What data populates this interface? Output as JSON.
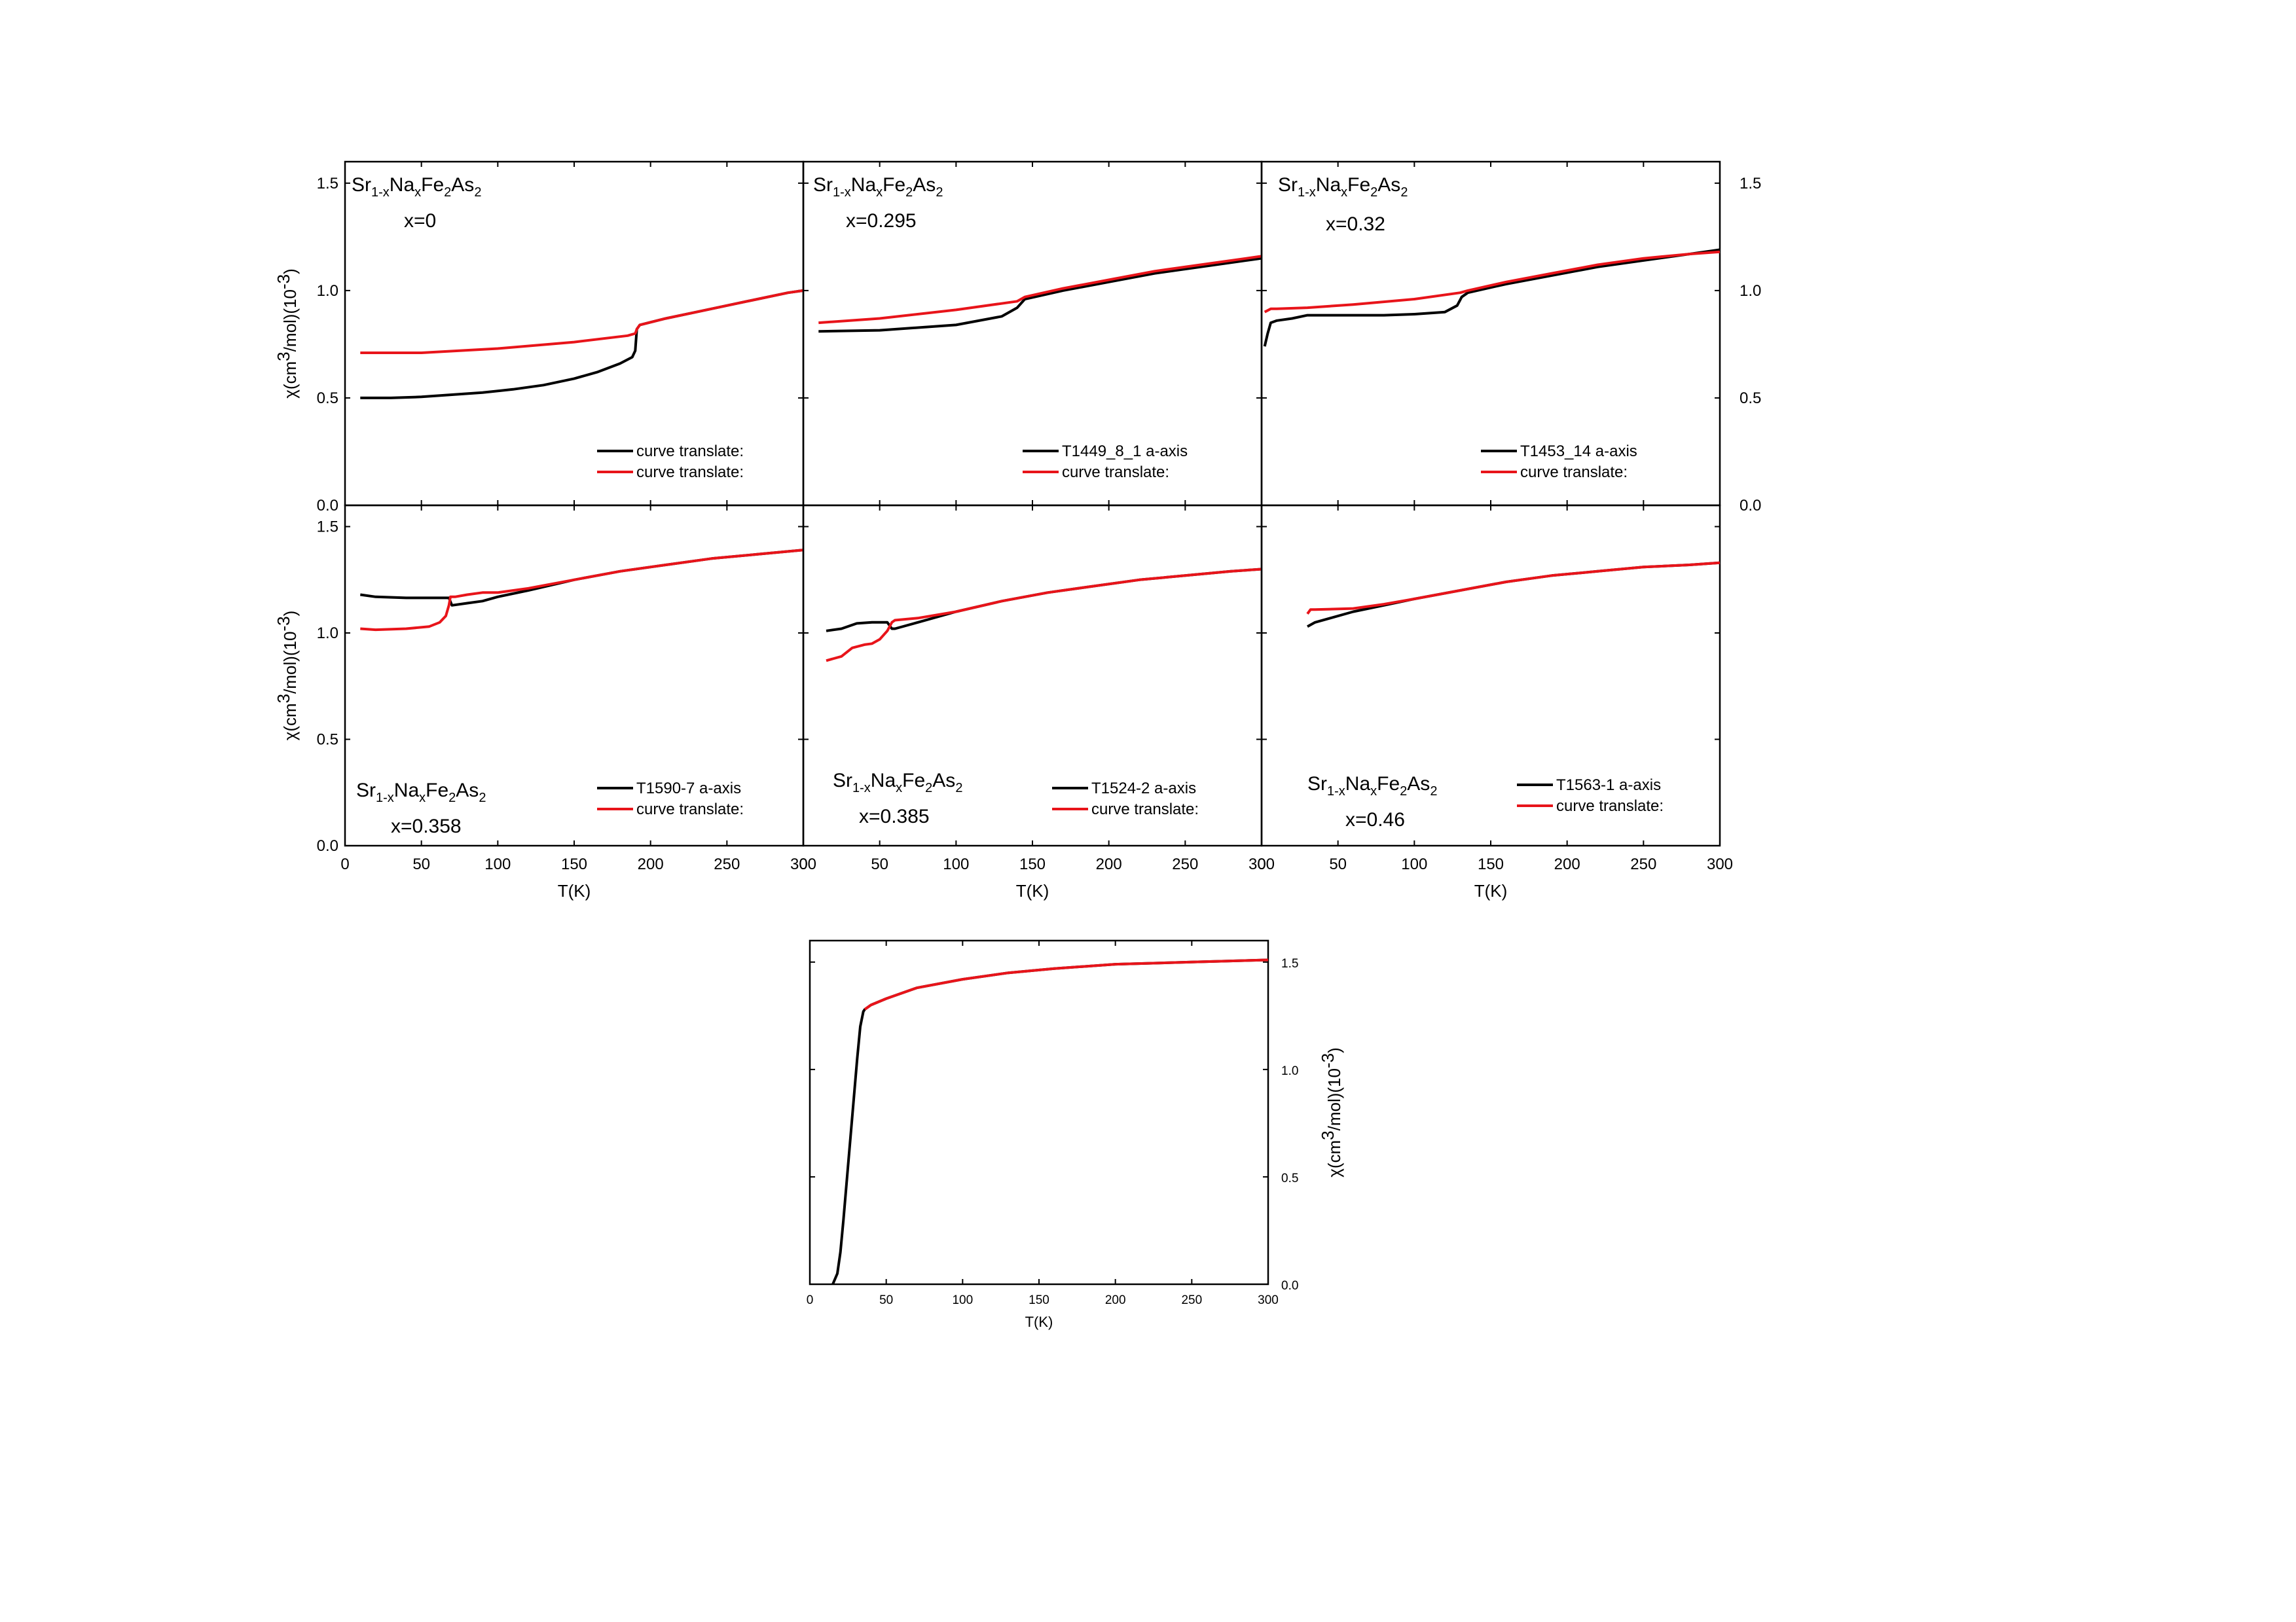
{
  "colors": {
    "black": "#000000",
    "red": "#e8141a"
  },
  "chart_data": [
    {
      "type": "line",
      "panel": "row1-col1",
      "xlim": [
        0,
        300
      ],
      "ylim": [
        0,
        1.6
      ],
      "yticks": [
        "0.0",
        "0.5",
        "1.0",
        "1.5"
      ],
      "ylabel": "χ(cm3/mol)(10-3)",
      "annotation": {
        "parts": [
          "Sr",
          "1-x",
          "Na",
          "x",
          "Fe",
          "2",
          "As",
          "2"
        ],
        "x_label": "x=0"
      },
      "legend": [
        "curve translate:",
        "curve translate:"
      ],
      "series": [
        {
          "name": "curve translate:",
          "color": "black",
          "x": [
            10,
            30,
            50,
            70,
            90,
            110,
            130,
            150,
            165,
            180,
            188,
            190,
            191,
            193,
            210,
            230,
            250,
            270,
            290,
            300
          ],
          "y": [
            0.5,
            0.5,
            0.505,
            0.515,
            0.525,
            0.54,
            0.56,
            0.59,
            0.62,
            0.66,
            0.69,
            0.72,
            0.82,
            0.84,
            0.87,
            0.9,
            0.93,
            0.96,
            0.99,
            1.0
          ]
        },
        {
          "name": "curve translate:",
          "color": "red",
          "x": [
            10,
            50,
            100,
            150,
            185,
            190,
            191,
            193,
            210,
            230,
            250,
            270,
            290,
            300
          ],
          "y": [
            0.71,
            0.71,
            0.73,
            0.76,
            0.79,
            0.8,
            0.82,
            0.84,
            0.87,
            0.9,
            0.93,
            0.96,
            0.99,
            1.0
          ]
        }
      ]
    },
    {
      "type": "line",
      "panel": "row1-col2",
      "xlim": [
        0,
        300
      ],
      "ylim": [
        0,
        1.6
      ],
      "annotation": {
        "parts": [
          "Sr",
          "1-x",
          "Na",
          "x",
          "Fe",
          "2",
          "As",
          "2"
        ],
        "x_label": "x=0.295"
      },
      "legend": [
        "T1449_8_1 a-axis",
        "curve translate:"
      ],
      "series": [
        {
          "name": "T1449_8_1 a-axis",
          "color": "black",
          "x": [
            10,
            50,
            100,
            130,
            140,
            145,
            170,
            200,
            230,
            260,
            290,
            300
          ],
          "y": [
            0.81,
            0.815,
            0.84,
            0.88,
            0.92,
            0.96,
            1.0,
            1.04,
            1.08,
            1.11,
            1.14,
            1.15
          ]
        },
        {
          "name": "curve translate:",
          "color": "red",
          "x": [
            10,
            50,
            100,
            140,
            145,
            170,
            200,
            230,
            260,
            290,
            300
          ],
          "y": [
            0.85,
            0.87,
            0.91,
            0.95,
            0.97,
            1.01,
            1.05,
            1.09,
            1.12,
            1.15,
            1.16
          ]
        }
      ]
    },
    {
      "type": "line",
      "panel": "row1-col3",
      "xlim": [
        0,
        300
      ],
      "ylim": [
        0,
        1.6
      ],
      "yticks": [
        "0.0",
        "0.5",
        "1.0",
        "1.5"
      ],
      "annotation": {
        "parts": [
          "Sr",
          "1-x",
          "Na",
          "x",
          "Fe",
          "2",
          "As",
          "2"
        ],
        "x_label": "x=0.32"
      },
      "legend": [
        "T1453_14 a-axis",
        "curve translate:"
      ],
      "series": [
        {
          "name": "T1453_14 a-axis",
          "color": "black",
          "x": [
            2,
            4,
            6,
            10,
            20,
            30,
            50,
            80,
            100,
            120,
            128,
            131,
            135,
            160,
            190,
            220,
            250,
            280,
            300
          ],
          "y": [
            0.74,
            0.8,
            0.85,
            0.86,
            0.87,
            0.885,
            0.885,
            0.885,
            0.89,
            0.9,
            0.93,
            0.97,
            0.99,
            1.03,
            1.07,
            1.11,
            1.14,
            1.17,
            1.19
          ]
        },
        {
          "name": "curve translate:",
          "color": "red",
          "x": [
            2,
            6,
            10,
            30,
            60,
            100,
            130,
            135,
            160,
            190,
            220,
            250,
            280,
            300
          ],
          "y": [
            0.9,
            0.915,
            0.915,
            0.92,
            0.935,
            0.96,
            0.99,
            1.0,
            1.04,
            1.08,
            1.12,
            1.15,
            1.17,
            1.18
          ]
        }
      ]
    },
    {
      "type": "line",
      "panel": "row2-col1",
      "xlim": [
        0,
        300
      ],
      "ylim": [
        0,
        1.6
      ],
      "xticks": [
        "0",
        "50",
        "100",
        "150",
        "200",
        "250",
        "300"
      ],
      "xlabel": "T(K)",
      "yticks": [
        "0.0",
        "0.5",
        "1.0",
        "1.5"
      ],
      "ylabel": "χ(cm3/mol)(10-3)",
      "annotation": {
        "parts": [
          "Sr",
          "1-x",
          "Na",
          "x",
          "Fe",
          "2",
          "As",
          "2"
        ],
        "x_label": "x=0.358"
      },
      "legend": [
        "T1590-7 a-axis",
        "curve translate:"
      ],
      "series": [
        {
          "name": "T1590-7 a-axis",
          "color": "black",
          "x": [
            10,
            20,
            40,
            60,
            68,
            70,
            80,
            90,
            100,
            120,
            150,
            180,
            210,
            240,
            270,
            300
          ],
          "y": [
            1.18,
            1.17,
            1.165,
            1.165,
            1.165,
            1.13,
            1.14,
            1.15,
            1.17,
            1.2,
            1.25,
            1.29,
            1.32,
            1.35,
            1.37,
            1.39
          ]
        },
        {
          "name": "curve translate:",
          "color": "red",
          "x": [
            10,
            20,
            40,
            55,
            62,
            66,
            68,
            69,
            72,
            80,
            90,
            100,
            120,
            150,
            180,
            210,
            240,
            270,
            300
          ],
          "y": [
            1.02,
            1.015,
            1.02,
            1.03,
            1.05,
            1.08,
            1.13,
            1.17,
            1.17,
            1.18,
            1.19,
            1.19,
            1.21,
            1.25,
            1.29,
            1.32,
            1.35,
            1.37,
            1.39
          ]
        }
      ]
    },
    {
      "type": "line",
      "panel": "row2-col2",
      "xlim": [
        0,
        300
      ],
      "ylim": [
        0,
        1.6
      ],
      "xticks": [
        "0",
        "50",
        "100",
        "150",
        "200",
        "250",
        "300"
      ],
      "xlabel": "T(K)",
      "annotation": {
        "parts": [
          "Sr",
          "1-x",
          "Na",
          "x",
          "Fe",
          "2",
          "As",
          "2"
        ],
        "x_label": "x=0.385"
      },
      "legend": [
        "T1524-2 a-axis",
        "curve translate:"
      ],
      "series": [
        {
          "name": "T1524-2 a-axis",
          "color": "black",
          "x": [
            15,
            25,
            35,
            45,
            55,
            58,
            60,
            75,
            100,
            130,
            160,
            190,
            220,
            250,
            280,
            300
          ],
          "y": [
            1.01,
            1.02,
            1.045,
            1.05,
            1.05,
            1.02,
            1.02,
            1.05,
            1.1,
            1.15,
            1.19,
            1.22,
            1.25,
            1.27,
            1.29,
            1.3
          ]
        },
        {
          "name": "curve translate:",
          "color": "red",
          "x": [
            15,
            20,
            25,
            32,
            40,
            45,
            50,
            55,
            58,
            60,
            75,
            100,
            130,
            160,
            190,
            220,
            250,
            280,
            300
          ],
          "y": [
            0.87,
            0.88,
            0.89,
            0.93,
            0.945,
            0.95,
            0.97,
            1.01,
            1.05,
            1.06,
            1.07,
            1.1,
            1.15,
            1.19,
            1.22,
            1.25,
            1.27,
            1.29,
            1.3
          ]
        }
      ]
    },
    {
      "type": "line",
      "panel": "row2-col3",
      "xlim": [
        0,
        300
      ],
      "ylim": [
        0,
        1.6
      ],
      "xticks": [
        "0",
        "50",
        "100",
        "150",
        "200",
        "250",
        "300"
      ],
      "xlabel": "T(K)",
      "annotation": {
        "parts": [
          "Sr",
          "1-x",
          "Na",
          "x",
          "Fe",
          "2",
          "As",
          "2"
        ],
        "x_label": "x=0.46"
      },
      "legend": [
        "T1563-1 a-axis",
        "curve translate:"
      ],
      "series": [
        {
          "name": "T1563-1 a-axis",
          "color": "black",
          "x": [
            30,
            35,
            45,
            60,
            80,
            100,
            130,
            160,
            190,
            220,
            250,
            280,
            300
          ],
          "y": [
            1.03,
            1.05,
            1.07,
            1.1,
            1.13,
            1.16,
            1.2,
            1.24,
            1.27,
            1.29,
            1.31,
            1.32,
            1.33
          ]
        },
        {
          "name": "curve translate:",
          "color": "red",
          "x": [
            30,
            32,
            35,
            60,
            80,
            100,
            130,
            160,
            190,
            220,
            250,
            280,
            300
          ],
          "y": [
            1.09,
            1.11,
            1.11,
            1.115,
            1.135,
            1.16,
            1.2,
            1.24,
            1.27,
            1.29,
            1.31,
            1.32,
            1.33
          ]
        }
      ]
    },
    {
      "type": "line",
      "panel": "bottom",
      "xlim": [
        0,
        300
      ],
      "ylim": [
        0,
        1.6
      ],
      "xticks": [
        "0",
        "50",
        "100",
        "150",
        "200",
        "250",
        "300"
      ],
      "xlabel": "T(K)",
      "yticks": [
        "0.0",
        "0.5",
        "1.0",
        "1.5"
      ],
      "ylabel": "χ(cm3/mol)(10-3)",
      "series": [
        {
          "color": "black",
          "x": [
            15,
            18,
            20,
            22,
            25,
            28,
            31,
            33,
            35,
            36,
            40,
            50,
            70,
            100,
            130,
            160,
            200,
            250,
            300
          ],
          "y": [
            0,
            0.05,
            0.15,
            0.3,
            0.55,
            0.8,
            1.05,
            1.2,
            1.27,
            1.28,
            1.3,
            1.33,
            1.38,
            1.42,
            1.45,
            1.47,
            1.49,
            1.5,
            1.51
          ]
        },
        {
          "color": "red",
          "x": [
            36,
            40,
            50,
            70,
            100,
            130,
            160,
            200,
            250,
            300
          ],
          "y": [
            1.28,
            1.3,
            1.33,
            1.38,
            1.42,
            1.45,
            1.47,
            1.49,
            1.5,
            1.51
          ]
        }
      ]
    }
  ]
}
